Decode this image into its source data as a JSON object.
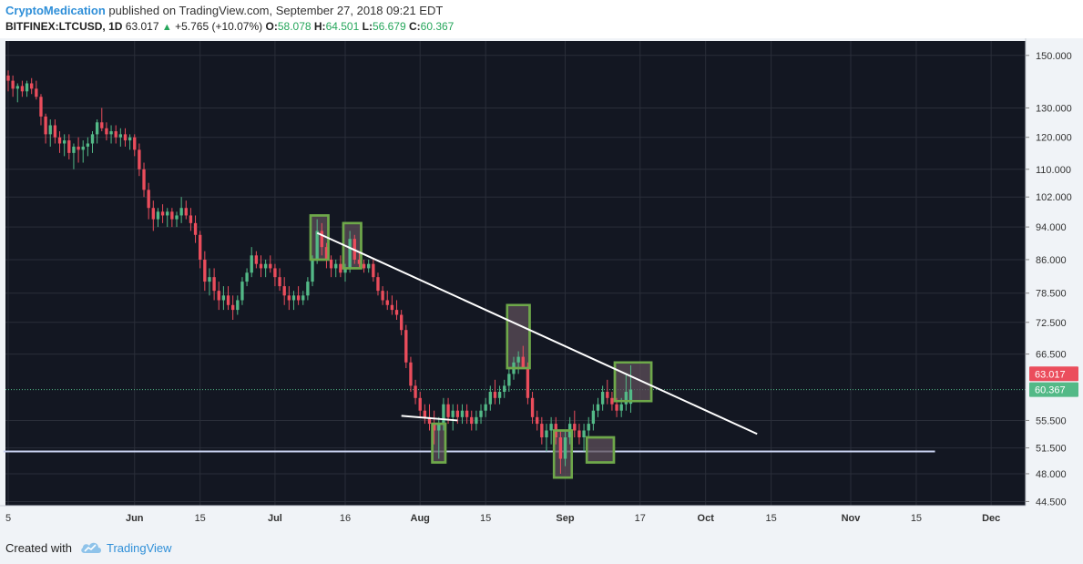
{
  "header": {
    "author": "CryptoMedication",
    "published": " published on TradingView.com, September 27, 2018 09:21 EDT",
    "symbol": "BITFINEX:LTCUSD, 1D",
    "last": "63.017",
    "change": "+5.765 (+10.07%)",
    "o_label": "O:",
    "o_val": "58.078",
    "h_label": "H:",
    "h_val": "64.501",
    "l_label": "L:",
    "l_val": "56.679",
    "c_label": "C:",
    "c_val": "60.367"
  },
  "footer": {
    "created_with": "Created with",
    "brand": "TradingView"
  },
  "colors": {
    "background": "#131722",
    "grid": "#2a2e39",
    "up": "#53b987",
    "down": "#eb4d5c",
    "box_stroke": "#6ea84a",
    "box_fill": "#5e4f5a",
    "trendline": "#ffffff",
    "support": "#c8d2f0",
    "axis_bg": "#f0f3f7",
    "axis_text": "#333333"
  },
  "chart_data": {
    "type": "candlestick",
    "price_scale": "log",
    "y_range": [
      44.0,
      156.0
    ],
    "x_range_days": [
      0,
      216
    ],
    "x_ticks": [
      {
        "label": "5",
        "day": 0
      },
      {
        "label": "Jun",
        "day": 27
      },
      {
        "label": "15",
        "day": 41
      },
      {
        "label": "Jul",
        "day": 57
      },
      {
        "label": "16",
        "day": 72
      },
      {
        "label": "Aug",
        "day": 88
      },
      {
        "label": "15",
        "day": 102
      },
      {
        "label": "Sep",
        "day": 119
      },
      {
        "label": "17",
        "day": 135
      },
      {
        "label": "Oct",
        "day": 149
      },
      {
        "label": "15",
        "day": 163
      },
      {
        "label": "Nov",
        "day": 180
      },
      {
        "label": "15",
        "day": 194
      },
      {
        "label": "Dec",
        "day": 210
      }
    ],
    "y_ticks": [
      "150.000",
      "130.000",
      "120.000",
      "110.000",
      "102.000",
      "94.000",
      "86.000",
      "78.500",
      "72.500",
      "66.500",
      "60.367",
      "55.500",
      "51.500",
      "48.000",
      "44.500"
    ],
    "y_tick_values": [
      150,
      130,
      120,
      110,
      102,
      94,
      86,
      78.5,
      72.5,
      66.5,
      60.367,
      55.5,
      51.5,
      48,
      44.5
    ],
    "price_labels": [
      {
        "label": "63.017",
        "value": 63.017,
        "color": "#eb4d5c"
      },
      {
        "label": "60.367",
        "value": 60.367,
        "color": "#53b987"
      }
    ],
    "candles": [
      [
        0,
        142,
        144,
        136,
        140
      ],
      [
        1,
        140,
        142,
        134,
        137
      ],
      [
        2,
        137,
        139,
        132,
        138
      ],
      [
        3,
        138,
        140,
        134,
        136
      ],
      [
        4,
        136,
        140,
        134,
        139
      ],
      [
        5,
        139,
        141,
        135,
        137
      ],
      [
        6,
        137,
        140,
        133,
        134
      ],
      [
        7,
        134,
        135,
        124,
        127
      ],
      [
        8,
        127,
        128,
        118,
        121
      ],
      [
        9,
        121,
        126,
        117,
        124
      ],
      [
        10,
        124,
        126,
        118,
        120
      ],
      [
        11,
        120,
        122,
        115,
        118
      ],
      [
        12,
        118,
        121,
        114,
        119
      ],
      [
        13,
        119,
        121,
        113,
        115
      ],
      [
        14,
        115,
        118,
        110,
        117
      ],
      [
        15,
        117,
        120,
        112,
        116
      ],
      [
        16,
        116,
        119,
        112,
        117
      ],
      [
        17,
        117,
        120,
        114,
        118
      ],
      [
        18,
        118,
        122,
        115,
        121
      ],
      [
        19,
        121,
        126,
        118,
        125
      ],
      [
        20,
        125,
        130,
        122,
        123
      ],
      [
        21,
        123,
        125,
        119,
        121
      ],
      [
        22,
        121,
        124,
        118,
        122
      ],
      [
        23,
        122,
        124,
        118,
        120
      ],
      [
        24,
        120,
        123,
        117,
        121
      ],
      [
        25,
        121,
        123,
        117,
        119
      ],
      [
        26,
        119,
        121,
        116,
        120
      ],
      [
        27,
        120,
        121,
        114,
        116
      ],
      [
        28,
        116,
        118,
        108,
        110
      ],
      [
        29,
        110,
        112,
        102,
        104
      ],
      [
        30,
        104,
        106,
        96,
        99
      ],
      [
        31,
        99,
        101,
        93,
        96
      ],
      [
        32,
        96,
        99,
        94,
        98
      ],
      [
        33,
        98,
        100,
        95,
        97
      ],
      [
        34,
        97,
        99,
        94,
        98
      ],
      [
        35,
        98,
        99,
        94,
        96
      ],
      [
        36,
        96,
        98,
        94,
        97
      ],
      [
        37,
        97,
        102,
        95,
        99
      ],
      [
        38,
        99,
        101,
        96,
        97
      ],
      [
        39,
        97,
        99,
        93,
        95
      ],
      [
        40,
        95,
        97,
        90,
        92
      ],
      [
        41,
        92,
        93,
        84,
        86
      ],
      [
        42,
        86,
        88,
        79,
        81
      ],
      [
        43,
        81,
        84,
        78,
        82
      ],
      [
        44,
        82,
        84,
        77,
        79
      ],
      [
        45,
        79,
        81,
        75,
        77
      ],
      [
        46,
        77,
        80,
        75,
        78
      ],
      [
        47,
        78,
        80,
        75,
        76
      ],
      [
        48,
        76,
        78,
        73,
        75
      ],
      [
        49,
        75,
        78,
        74,
        77
      ],
      [
        50,
        77,
        82,
        76,
        81
      ],
      [
        51,
        81,
        84,
        80,
        83
      ],
      [
        52,
        83,
        89,
        82,
        87
      ],
      [
        53,
        87,
        88,
        84,
        85
      ],
      [
        54,
        85,
        87,
        82,
        84
      ],
      [
        55,
        84,
        86,
        82,
        85
      ],
      [
        56,
        85,
        87,
        83,
        84
      ],
      [
        57,
        84,
        85,
        80,
        82
      ],
      [
        58,
        82,
        84,
        79,
        80
      ],
      [
        59,
        80,
        82,
        76,
        78
      ],
      [
        60,
        78,
        80,
        75,
        77
      ],
      [
        61,
        77,
        79,
        75,
        78
      ],
      [
        62,
        78,
        80,
        76,
        77
      ],
      [
        63,
        77,
        79,
        76,
        78
      ],
      [
        64,
        78,
        82,
        77,
        81
      ],
      [
        65,
        81,
        87,
        80,
        86
      ],
      [
        66,
        86,
        96,
        85,
        93
      ],
      [
        67,
        93,
        95,
        87,
        89
      ],
      [
        68,
        89,
        90,
        84,
        86
      ],
      [
        69,
        86,
        87,
        82,
        84
      ],
      [
        70,
        84,
        86,
        82,
        85
      ],
      [
        71,
        85,
        87,
        82,
        83
      ],
      [
        72,
        83,
        85,
        81,
        84
      ],
      [
        73,
        84,
        93,
        83,
        91
      ],
      [
        74,
        91,
        92,
        85,
        86
      ],
      [
        75,
        86,
        88,
        84,
        85
      ],
      [
        76,
        85,
        86,
        83,
        84
      ],
      [
        77,
        84,
        86,
        83,
        85
      ],
      [
        78,
        85,
        86,
        81,
        82
      ],
      [
        79,
        82,
        83,
        78,
        79
      ],
      [
        80,
        79,
        80,
        76,
        77
      ],
      [
        81,
        77,
        79,
        75,
        76
      ],
      [
        82,
        76,
        78,
        74,
        75
      ],
      [
        83,
        75,
        77,
        73,
        74
      ],
      [
        84,
        74,
        75,
        70,
        71
      ],
      [
        85,
        71,
        72,
        64,
        65
      ],
      [
        86,
        65,
        66,
        60,
        61
      ],
      [
        87,
        61,
        62,
        58,
        59
      ],
      [
        88,
        59,
        60,
        56,
        57
      ],
      [
        89,
        57,
        58,
        55,
        56
      ],
      [
        90,
        56,
        58,
        54,
        55
      ],
      [
        91,
        55,
        57,
        52,
        54
      ],
      [
        92,
        54,
        56,
        50,
        55
      ],
      [
        93,
        55,
        59,
        54,
        58
      ],
      [
        94,
        58,
        59,
        55,
        56
      ],
      [
        95,
        56,
        58,
        54,
        57
      ],
      [
        96,
        57,
        58,
        55,
        56
      ],
      [
        97,
        56,
        58,
        55,
        57
      ],
      [
        98,
        57,
        58,
        55,
        56
      ],
      [
        99,
        56,
        57,
        54,
        55
      ],
      [
        100,
        55,
        57,
        54,
        56
      ],
      [
        101,
        56,
        58,
        55,
        57
      ],
      [
        102,
        57,
        59,
        56,
        58
      ],
      [
        103,
        58,
        61,
        57,
        60
      ],
      [
        104,
        60,
        62,
        58,
        59
      ],
      [
        105,
        59,
        61,
        58,
        60
      ],
      [
        106,
        60,
        62,
        59,
        61
      ],
      [
        107,
        61,
        64,
        60,
        63
      ],
      [
        108,
        63,
        66,
        62,
        65
      ],
      [
        109,
        65,
        67,
        63,
        66
      ],
      [
        110,
        66,
        68,
        64,
        64
      ],
      [
        111,
        64,
        65,
        58,
        59
      ],
      [
        112,
        59,
        60,
        55,
        56
      ],
      [
        113,
        56,
        57,
        54,
        55
      ],
      [
        114,
        55,
        56,
        52,
        53
      ],
      [
        115,
        53,
        55,
        51,
        54
      ],
      [
        116,
        54,
        56,
        52,
        55
      ],
      [
        117,
        55,
        56,
        52,
        53
      ],
      [
        118,
        53,
        54,
        48,
        50
      ],
      [
        119,
        50,
        54,
        49,
        53
      ],
      [
        120,
        53,
        56,
        52,
        55
      ],
      [
        121,
        55,
        57,
        53,
        54
      ],
      [
        122,
        54,
        55,
        52,
        53
      ],
      [
        123,
        53,
        55,
        51,
        54
      ],
      [
        124,
        54,
        56,
        53,
        55
      ],
      [
        125,
        55,
        58,
        54,
        57
      ],
      [
        126,
        57,
        59,
        56,
        58
      ],
      [
        127,
        58,
        61,
        57,
        60
      ],
      [
        128,
        60,
        62,
        58,
        59
      ],
      [
        129,
        59,
        60,
        57,
        58
      ],
      [
        130,
        58,
        59,
        56,
        57
      ],
      [
        131,
        57,
        59,
        56,
        58
      ],
      [
        132,
        58,
        63,
        57,
        60
      ],
      [
        133,
        58.078,
        64.501,
        56.679,
        60.367
      ]
    ],
    "candle_x_start": 0,
    "highlight_boxes": [
      {
        "day_from": 65,
        "day_to": 68,
        "high": 97,
        "low": 86
      },
      {
        "day_from": 72,
        "day_to": 75,
        "high": 95,
        "low": 84
      },
      {
        "day_from": 91,
        "day_to": 93,
        "high": 55,
        "low": 49.5
      },
      {
        "day_from": 107,
        "day_to": 111,
        "high": 76,
        "low": 64
      },
      {
        "day_from": 117,
        "day_to": 120,
        "high": 54,
        "low": 47.5
      },
      {
        "day_from": 124,
        "day_to": 129,
        "high": 53,
        "low": 49.5
      },
      {
        "day_from": 130,
        "day_to": 137,
        "high": 65,
        "low": 58.5
      }
    ],
    "trendlines": [
      {
        "x1": 66,
        "y1": 92.5,
        "x2": 160,
        "y2": 53.5,
        "color": "#ffffff"
      },
      {
        "x1": 84,
        "y1": 56.2,
        "x2": 96,
        "y2": 55.5,
        "color": "#ffffff"
      }
    ],
    "support_line": {
      "x1": -1,
      "x2": 198,
      "value": 51.0
    },
    "last_price_line": 60.367
  }
}
